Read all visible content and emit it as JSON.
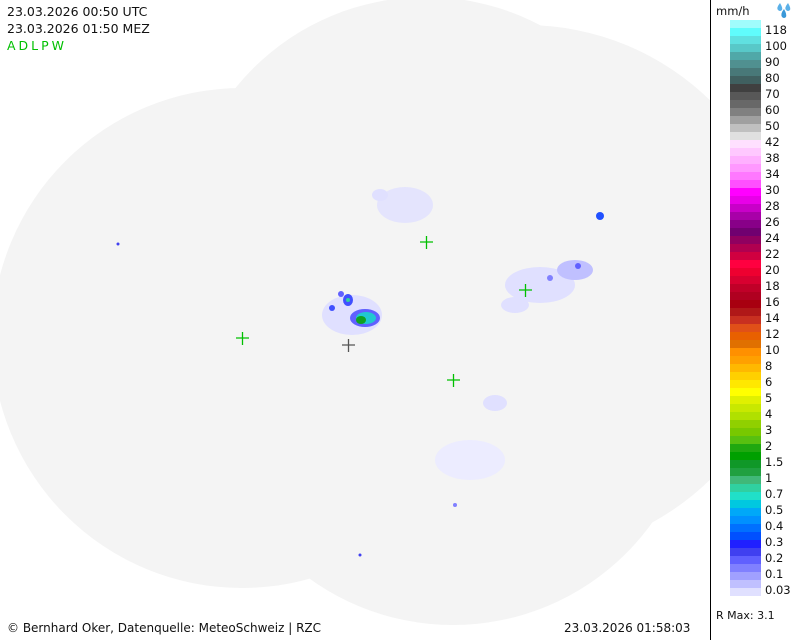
{
  "header": {
    "utc_time": "23.03.2026 00:50 UTC",
    "local_time": "23.03.2026 01:50 MEZ",
    "radar_stations": "ADLPW",
    "stations_color": "#00c000"
  },
  "footer": {
    "credit": "© Bernhard Oker, Datenquelle: MeteoSchweiz | RZC",
    "generated": "23.03.2026 01:58:03"
  },
  "legend": {
    "unit": "mm/h",
    "icon": "raindrops-icon",
    "r_max": "R Max: 3.1",
    "labels": [
      "118",
      "100",
      "90",
      "80",
      "70",
      "60",
      "50",
      "42",
      "38",
      "34",
      "30",
      "28",
      "26",
      "24",
      "22",
      "20",
      "18",
      "16",
      "14",
      "12",
      "10",
      "8",
      "6",
      "5",
      "4",
      "3",
      "2",
      "1.5",
      "1",
      "0.7",
      "0.5",
      "0.4",
      "0.3",
      "0.2",
      "0.1",
      "0.03"
    ],
    "colors": [
      "#a0fcfc",
      "#60fcfc",
      "#60e0e0",
      "#58c8c8",
      "#50a8a8",
      "#509090",
      "#487878",
      "#406060",
      "#404040",
      "#585858",
      "#686868",
      "#808080",
      "#a0a0a0",
      "#c0c0c0",
      "#e0e0e0",
      "#ffe0ff",
      "#ffc8ff",
      "#ffb0ff",
      "#ff98ff",
      "#ff78ff",
      "#ff50ff",
      "#ff00ff",
      "#e800e8",
      "#c800c8",
      "#a800a8",
      "#880088",
      "#700070",
      "#900060",
      "#b00050",
      "#d00040",
      "#ff0040",
      "#ee0030",
      "#d80030",
      "#c00028",
      "#b00020",
      "#a80010",
      "#b01818",
      "#c83020",
      "#e05018",
      "#e86000",
      "#e07000",
      "#ff9000",
      "#ffa000",
      "#ffb800",
      "#ffd000",
      "#ffe800",
      "#ffff00",
      "#e0f000",
      "#c8e800",
      "#b0e000",
      "#90d000",
      "#78c800",
      "#58c010",
      "#20a810",
      "#00a000",
      "#109828",
      "#20a040",
      "#40b878",
      "#30d0a0",
      "#20e0c8",
      "#00c8e0",
      "#00a8f8",
      "#0090ff",
      "#0070ff",
      "#0050ff",
      "#2020ff",
      "#4040f0",
      "#6060ff",
      "#8080ff",
      "#a0a0ff",
      "#c0c0ff",
      "#e0e0ff"
    ]
  },
  "map": {
    "coverage_color": "#f4f4f4",
    "radar_marker_color": "#00c000",
    "center_marker_color": "#555555"
  }
}
